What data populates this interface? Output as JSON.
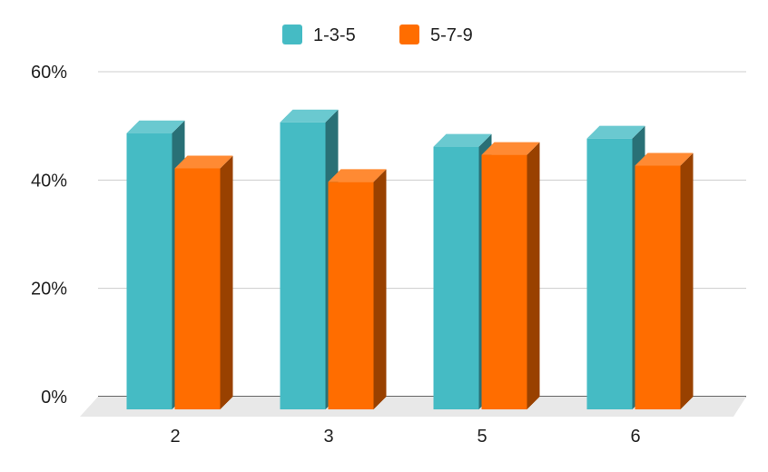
{
  "chart_data": {
    "type": "bar",
    "style": "3d",
    "categories": [
      "2",
      "3",
      "5",
      "6"
    ],
    "series": [
      {
        "name": "1-3-5",
        "color": "#45bbc4",
        "values": [
          0.51,
          0.53,
          0.485,
          0.5
        ]
      },
      {
        "name": "5-7-9",
        "color": "#ff6d00",
        "values": [
          0.445,
          0.42,
          0.47,
          0.45
        ]
      }
    ],
    "ylim": [
      0,
      0.6
    ],
    "yticks": [
      0,
      0.2,
      0.4,
      0.6
    ],
    "ytick_labels": [
      "0%",
      "20%",
      "40%",
      "60%"
    ],
    "grid": true,
    "legend_position": "top",
    "title": "",
    "xlabel": "",
    "ylabel": ""
  }
}
